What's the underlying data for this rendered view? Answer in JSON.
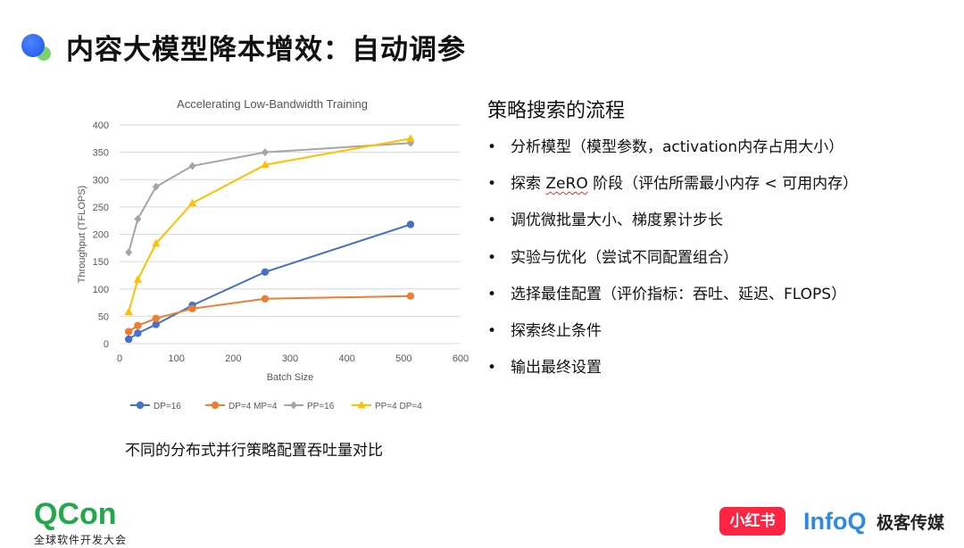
{
  "header": {
    "title": "内容大模型降本增效：自动调参"
  },
  "chart_data": {
    "type": "line",
    "title": "Accelerating Low-Bandwidth Training",
    "xlabel": "Batch Size",
    "ylabel": "Throughput (TFLOPS)",
    "xlim": [
      0,
      600
    ],
    "ylim": [
      0,
      400
    ],
    "xticks": [
      0,
      100,
      200,
      300,
      400,
      500,
      600
    ],
    "yticks": [
      0,
      50,
      100,
      150,
      200,
      250,
      300,
      350,
      400
    ],
    "grid": true,
    "legend_position": "bottom",
    "series": [
      {
        "name": "DP=16",
        "color": "#4472c4",
        "marker": "circle",
        "points": [
          [
            16,
            8
          ],
          [
            32,
            19
          ],
          [
            64,
            35
          ],
          [
            128,
            70
          ],
          [
            256,
            131
          ],
          [
            512,
            218
          ]
        ]
      },
      {
        "name": "DP=4 MP=4",
        "color": "#ed7d31",
        "marker": "circle",
        "points": [
          [
            16,
            22
          ],
          [
            32,
            33
          ],
          [
            64,
            46
          ],
          [
            128,
            64
          ],
          [
            256,
            82
          ],
          [
            512,
            87
          ]
        ]
      },
      {
        "name": "PP=16",
        "color": "#a5a5a5",
        "marker": "diamond",
        "points": [
          [
            16,
            167
          ],
          [
            32,
            228
          ],
          [
            64,
            287
          ],
          [
            128,
            325
          ],
          [
            256,
            350
          ],
          [
            512,
            367
          ]
        ]
      },
      {
        "name": "PP=4 DP=4",
        "color": "#ffc000",
        "marker": "triangle",
        "points": [
          [
            16,
            58
          ],
          [
            32,
            117
          ],
          [
            64,
            183
          ],
          [
            128,
            257
          ],
          [
            256,
            327
          ],
          [
            512,
            375
          ]
        ]
      }
    ]
  },
  "chart_caption": "不同的分布式并行策略配置吞吐量对比",
  "strategy": {
    "title": "策略搜索的流程",
    "bullet_symbol": "•",
    "items": [
      "分析模型（模型参数，activation内存占用大小）",
      {
        "pre": "探索 ",
        "mark": "ZeRO",
        "post": " 阶段（评估所需最小内存 < 可用内存）"
      },
      "调优微批量大小、梯度累计步长",
      "实验与优化（尝试不同配置组合）",
      "选择最佳配置（评价指标：吞吐、延迟、FLOPS）",
      "探索终止条件",
      "输出最终设置"
    ]
  },
  "footer": {
    "qcon": "QCon",
    "qcon_sub": "全球软件开发大会",
    "xiaohongshu": "小红书",
    "infoq": "InfoQ",
    "infoq_cn": "极客传媒"
  }
}
